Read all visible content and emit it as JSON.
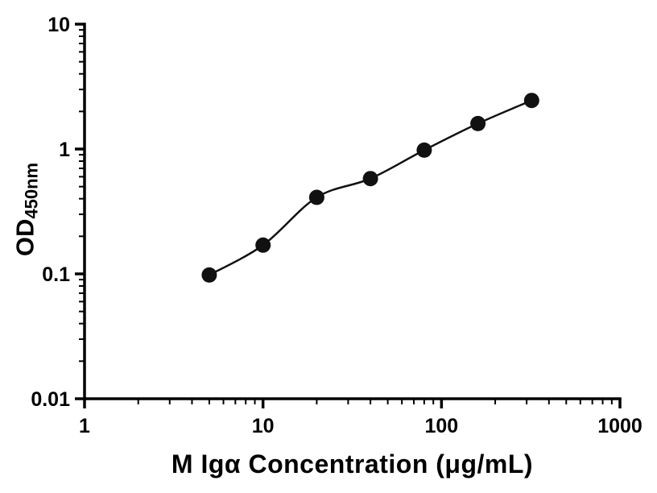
{
  "chart_data": {
    "type": "scatter",
    "x": [
      5,
      10,
      20,
      40,
      80,
      160,
      320
    ],
    "y": [
      0.098,
      0.17,
      0.41,
      0.58,
      0.98,
      1.6,
      2.45
    ],
    "fit_line": true,
    "title": "",
    "xlabel": "M Igα Concentration (μg/mL)",
    "ylabel": "OD",
    "ylabel_subscript": "450nm",
    "xscale": "log",
    "yscale": "log",
    "xlim": [
      1,
      1000
    ],
    "ylim": [
      0.01,
      10
    ],
    "xticks": {
      "values": [
        1,
        10,
        100,
        1000
      ],
      "labels": [
        "1",
        "10",
        "100",
        "1000"
      ]
    },
    "yticks": {
      "values": [
        0.01,
        0.1,
        1,
        10
      ],
      "labels": [
        "0.01",
        "0.1",
        "1",
        "10"
      ]
    },
    "grid": false,
    "legend": false,
    "marker_color": "#111111",
    "line_color": "#111111",
    "axis_color": "#000000",
    "background": "#ffffff"
  }
}
